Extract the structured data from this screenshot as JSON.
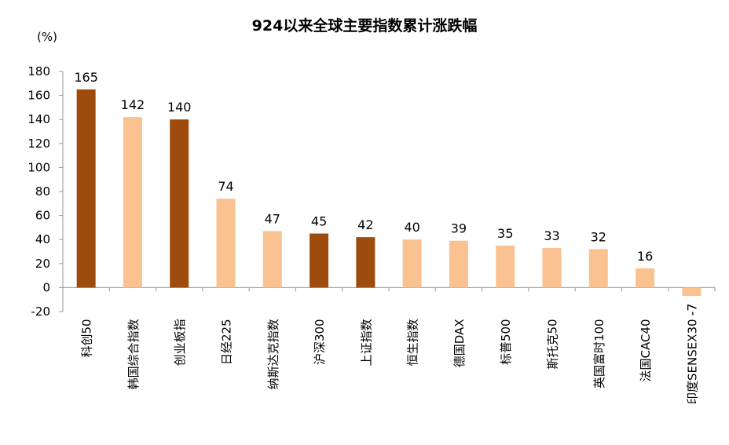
{
  "chart_data": {
    "type": "bar",
    "title": "924以来全球主要指数累计涨跌幅",
    "ylabel": "(%)",
    "xlabel": "",
    "ylim": [
      -20,
      180
    ],
    "yticks": [
      -20,
      0,
      20,
      40,
      60,
      80,
      100,
      120,
      140,
      160,
      180
    ],
    "grid": false,
    "categories": [
      "科创50",
      "韩国综合指数",
      "创业板指",
      "日经225",
      "纳斯达克指数",
      "沪深300",
      "上证指数",
      "恒生指数",
      "德国DAX",
      "标普500",
      "斯托克50",
      "英国富时100",
      "法国CAC40",
      "印度SENSEX30"
    ],
    "values": [
      165,
      142,
      140,
      74,
      47,
      45,
      42,
      40,
      39,
      35,
      33,
      32,
      16,
      -7
    ],
    "value_labels": [
      "165",
      "142",
      "140",
      "74",
      "47",
      "45",
      "42",
      "40",
      "39",
      "35",
      "33",
      "32",
      "16",
      "-7"
    ],
    "bar_colors": [
      "#9E4B0E",
      "#F9C290",
      "#9E4B0E",
      "#F9C290",
      "#F9C290",
      "#9E4B0E",
      "#9E4B0E",
      "#F9C290",
      "#F9C290",
      "#F9C290",
      "#F9C290",
      "#F9C290",
      "#F9C290",
      "#F9C290"
    ]
  }
}
